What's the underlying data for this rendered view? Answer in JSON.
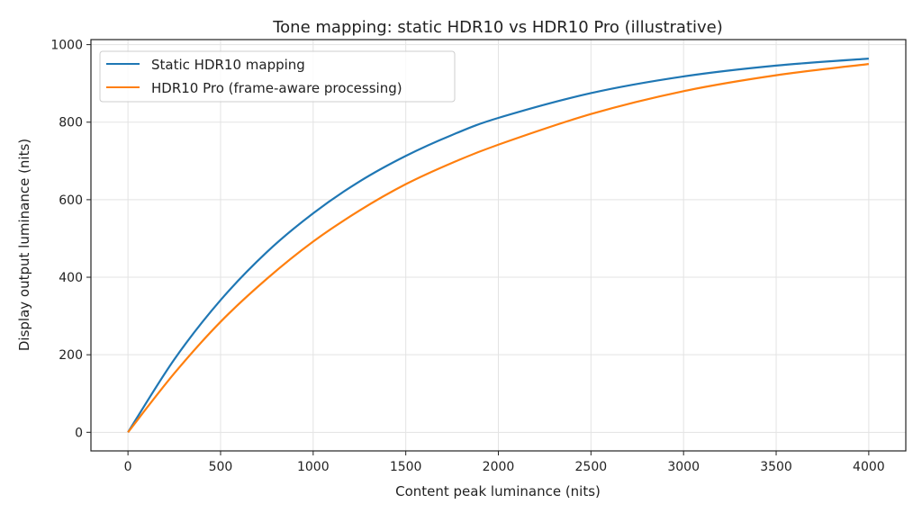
{
  "chart_data": {
    "type": "line",
    "title": "Tone mapping: static HDR10 vs HDR10 Pro (illustrative)",
    "xlabel": "Content peak luminance (nits)",
    "ylabel": "Display output luminance (nits)",
    "xlim": [
      -200,
      4200
    ],
    "ylim": [
      -48,
      1013
    ],
    "xticks": [
      0,
      500,
      1000,
      1500,
      2000,
      2500,
      3000,
      3500,
      4000
    ],
    "yticks": [
      0,
      200,
      400,
      600,
      800,
      1000
    ],
    "grid": true,
    "legend_position": "top-left",
    "x": [
      0,
      250,
      500,
      750,
      1000,
      1250,
      1500,
      1750,
      2000,
      2500,
      3000,
      3500,
      4000
    ],
    "series": [
      {
        "name": "Static HDR10 mapping",
        "color": "#1f77b4",
        "values": [
          0,
          188,
          341,
          465,
          565,
          647,
          713,
          767,
          811,
          875,
          918,
          946,
          964
        ]
      },
      {
        "name": "HDR10 Pro (frame-aware processing)",
        "color": "#ff7f0e",
        "values": [
          0,
          152,
          285,
          396,
          492,
          572,
          640,
          695,
          742,
          821,
          880,
          921,
          950
        ]
      }
    ]
  }
}
